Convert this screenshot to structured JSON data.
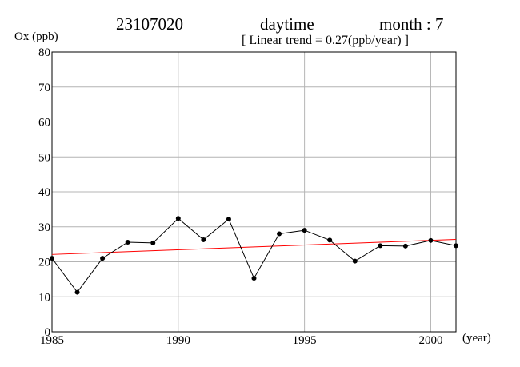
{
  "header": {
    "station": "23107020",
    "period": "daytime",
    "month": "month : 7",
    "trend": "[ Linear trend = 0.27(ppb/year) ]"
  },
  "chart_data": {
    "type": "line",
    "ylabel": "Ox (ppb)",
    "xlabel": "(year)",
    "xlim": [
      1985,
      2001
    ],
    "ylim": [
      0,
      80
    ],
    "x_ticks": [
      1985,
      1990,
      1995,
      2000
    ],
    "y_ticks": [
      0,
      10,
      20,
      30,
      40,
      50,
      60,
      70,
      80
    ],
    "grid": true,
    "series": [
      {
        "x": [
          1985,
          1986,
          1987,
          1988,
          1989,
          1990,
          1991,
          1992,
          1993,
          1994,
          1995,
          1996,
          1997,
          1998,
          1999,
          2000,
          2001
        ],
        "values": [
          21.0,
          11.3,
          21.0,
          25.6,
          25.4,
          32.4,
          26.3,
          32.2,
          15.3,
          28.0,
          29.0,
          26.2,
          20.2,
          24.6,
          24.5,
          26.1,
          24.6
        ],
        "color": "#000000"
      }
    ],
    "trend_line": {
      "slope": 0.27,
      "x": [
        1985,
        2001
      ],
      "y": [
        22.1,
        26.4
      ],
      "color": "#ff0000"
    }
  }
}
